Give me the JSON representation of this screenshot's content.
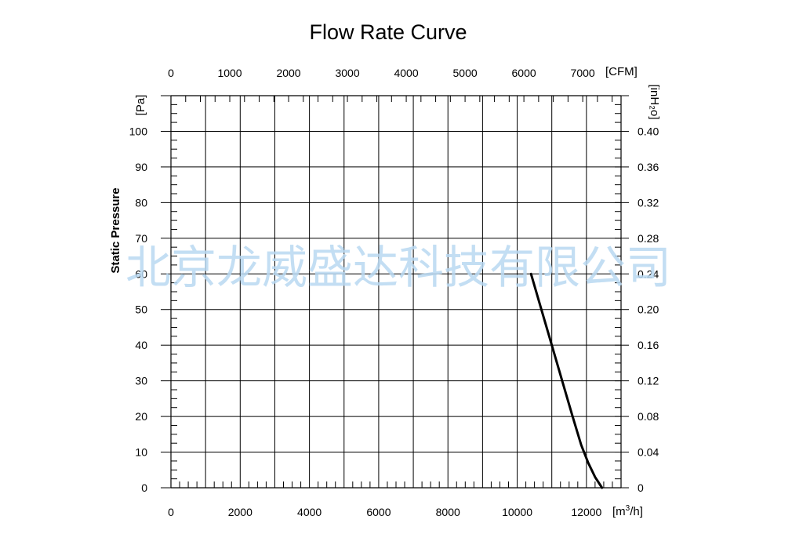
{
  "watermark": "北京龙威盛达科技有限公司",
  "chart_data": {
    "type": "line",
    "title": "Flow Rate Curve",
    "ylabel": "Static Pressure",
    "x_bottom": {
      "unit": "[m³/h]",
      "unit_base": "[m",
      "unit_sup": "3",
      "unit_tail": "/h]",
      "range": [
        0,
        13000
      ],
      "ticks": [
        0,
        2000,
        4000,
        6000,
        8000,
        10000,
        12000
      ]
    },
    "x_top": {
      "unit": "[CFM]",
      "ticks": [
        0,
        1000,
        2000,
        3000,
        4000,
        5000,
        6000,
        7000
      ]
    },
    "y_left": {
      "unit": "[Pa]",
      "range": [
        0,
        110
      ],
      "ticks": [
        0,
        10,
        20,
        30,
        40,
        50,
        60,
        70,
        80,
        90,
        100
      ]
    },
    "y_right": {
      "unit": "[inH₂o]",
      "ticks": [
        "0",
        "0.04",
        "0.08",
        "0.12",
        "0.16",
        "0.20",
        "0.24",
        "0.28",
        "0.32",
        "0.36",
        "0.40"
      ]
    },
    "grid": true,
    "series": [
      {
        "x": [
          10400,
          10700,
          11000,
          11300,
          11600,
          11850,
          12050,
          12250,
          12450
        ],
        "y": [
          60,
          50,
          40,
          30,
          20,
          12,
          7,
          3,
          0
        ],
        "color": "#000000"
      }
    ]
  }
}
